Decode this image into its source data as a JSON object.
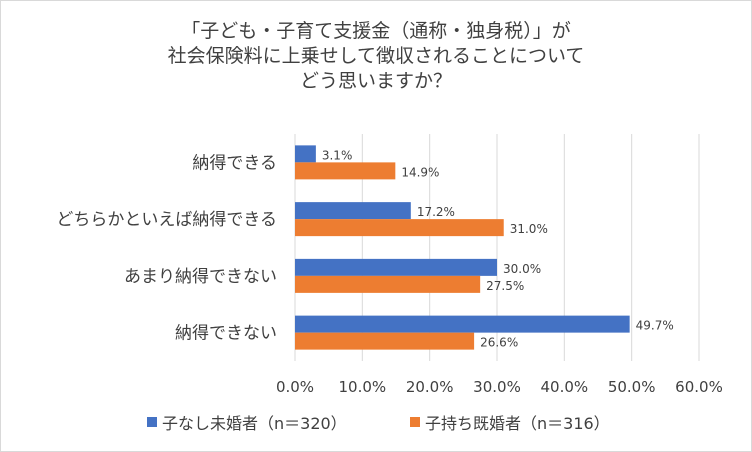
{
  "chart_data": {
    "type": "bar",
    "orientation": "horizontal",
    "title": [
      "「子ども・子育て支援金（通称・独身税）」が",
      "社会保険料に上乗せして徴収されることについて",
      "どう思いますか？"
    ],
    "categories": [
      "納得できる",
      "どちらかといえば納得できる",
      "あまり納得できない",
      "納得できない"
    ],
    "series": [
      {
        "name": "子なし未婚者（n＝320）",
        "color": "#4472c4",
        "values": [
          3.1,
          17.2,
          30.0,
          49.7
        ],
        "labels": [
          "3.1%",
          "17.2%",
          "30.0%",
          "49.7%"
        ]
      },
      {
        "name": "子持ち既婚者（n＝316）",
        "color": "#ed7d31",
        "values": [
          14.9,
          31.0,
          27.5,
          26.6
        ],
        "labels": [
          "14.9%",
          "31.0%",
          "27.5%",
          "26.6%"
        ]
      }
    ],
    "xlim": [
      0,
      60
    ],
    "ticks": [
      0,
      10,
      20,
      30,
      40,
      50,
      60
    ],
    "tick_labels": [
      "0.0%",
      "10.0%",
      "20.0%",
      "30.0%",
      "40.0%",
      "50.0%",
      "60.0%"
    ],
    "grid": true,
    "legend_position": "bottom"
  }
}
